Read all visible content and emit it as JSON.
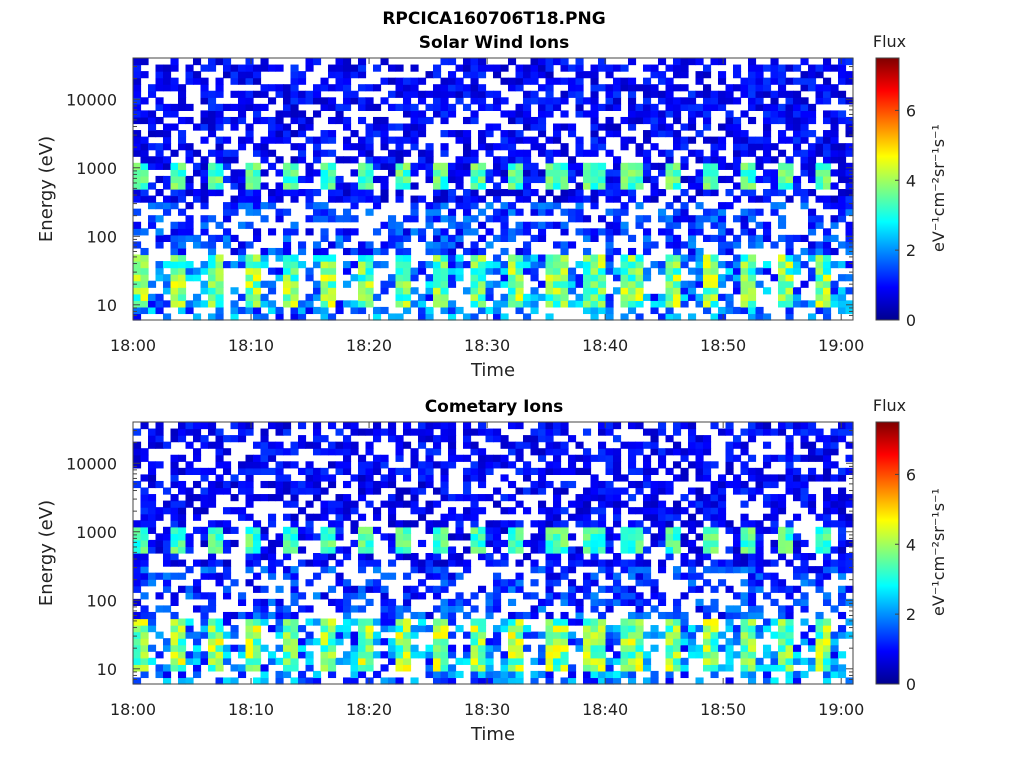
{
  "figure": {
    "title": "RPCICA160706T18.PNG"
  },
  "colormap": [
    "#00008f",
    "#0000ff",
    "#007fff",
    "#00ffff",
    "#7fff7f",
    "#ffff00",
    "#ff7f00",
    "#ff0000",
    "#7f0000"
  ],
  "chart_data": [
    {
      "type": "heatmap",
      "title": "Solar Wind Ions",
      "xlabel": "Time",
      "ylabel": "Energy (eV)",
      "x_ticks": [
        "18:00",
        "18:10",
        "18:20",
        "18:30",
        "18:40",
        "18:50",
        "19:00"
      ],
      "x_range": [
        "18:00",
        "19:01"
      ],
      "y_scale": "log",
      "y_ticks": [
        "10",
        "100",
        "1000",
        "10000"
      ],
      "y_range": [
        6,
        40000
      ],
      "colorbar": {
        "label": "Flux",
        "unit": "eV⁻¹cm⁻²sr⁻¹s⁻¹",
        "ticks": [
          "0",
          "2",
          "4",
          "6"
        ],
        "range": [
          0,
          7.5
        ]
      },
      "features": {
        "band_1_energy_eV": [
          500,
          1200
        ],
        "band_1_flux": 3.5,
        "band_2_energy_eV": [
          10,
          50
        ],
        "band_2_flux": 4.5,
        "band_2_max_flux": 5.3,
        "background_flux": 0.8,
        "pulse_period_minutes": 3.2
      }
    },
    {
      "type": "heatmap",
      "title": "Cometary Ions",
      "xlabel": "Time",
      "ylabel": "Energy (eV)",
      "x_ticks": [
        "18:00",
        "18:10",
        "18:20",
        "18:30",
        "18:40",
        "18:50",
        "19:00"
      ],
      "x_range": [
        "18:00",
        "19:01"
      ],
      "y_scale": "log",
      "y_ticks": [
        "10",
        "100",
        "1000",
        "10000"
      ],
      "y_range": [
        6,
        40000
      ],
      "colorbar": {
        "label": "Flux",
        "unit": "eV⁻¹cm⁻²sr⁻¹s⁻¹",
        "ticks": [
          "0",
          "2",
          "4",
          "6"
        ],
        "range": [
          0,
          7.5
        ]
      },
      "features": {
        "band_1_energy_eV": [
          500,
          1200
        ],
        "band_1_flux": 3.4,
        "band_2_energy_eV": [
          10,
          50
        ],
        "band_2_flux": 4.6,
        "band_2_max_flux": 5.6,
        "background_flux": 0.8,
        "pulse_period_minutes": 3.2
      }
    }
  ]
}
